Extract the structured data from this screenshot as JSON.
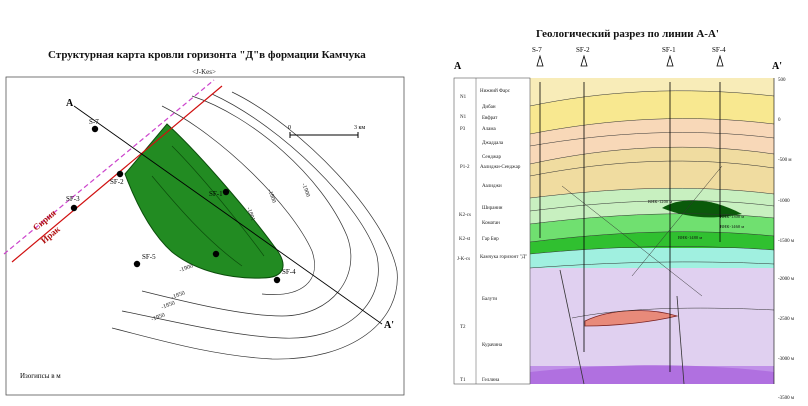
{
  "left": {
    "title": "Структурная карта кровли горизонта \"Д\"в формации Камчука",
    "subtitle": "<J-Kes>",
    "section_end_a": "A",
    "section_end_b": "A'",
    "border_label_1": "Сирия",
    "border_label_2": "Ирак",
    "scale_0": "0",
    "scale_3": "3 км",
    "legend": "Изогипсы в м",
    "wells": [
      "S-7",
      "SF-2",
      "SF-3",
      "SF-5",
      "SF-1",
      "SF-4"
    ],
    "contours": [
      "-1900",
      "-1850",
      "-1950",
      "-1800",
      "-1801",
      "-1900",
      "-1850"
    ],
    "colors": {
      "field": "#228b22",
      "field_edge": "#0b4d0b",
      "border": "#d01010",
      "border_dash": "#cc44cc"
    }
  },
  "right": {
    "title": "Геологический разрез по линии A-A'",
    "end_a": "A",
    "end_b": "A'",
    "well_labels": [
      "S-7",
      "SF-2",
      "SF-1",
      "SF-4"
    ],
    "depth_labels": [
      "500",
      "0",
      "-500 м",
      "-1000",
      "-1500 м",
      "-2000 м",
      "-2500 м",
      "-3000 м",
      "-3500 м"
    ],
    "formations": [
      "Нижний Фарс",
      "Дибан",
      "Евфрат",
      "Алама",
      "Джаддала",
      "Сенджар",
      "Аалиджи-Сенджар",
      "Аалиджи",
      "Ширанин",
      "Коматан",
      "Гар Бир",
      "Камчука горизонт \"Д\"",
      "Балути",
      "Курачина",
      "Геллина"
    ],
    "ages": [
      "N1",
      "N1",
      "P3",
      "P1-2",
      "K2-cs",
      "K2-st",
      "J-K-cs",
      "T2",
      "T1"
    ],
    "annotations": [
      "ВНК-1200 м",
      "ВНК-1300 м",
      "ВНК-1460 м",
      "ВНК-1480 м"
    ],
    "colors": {
      "top": "#f8ecb8",
      "yellow": "#f8e890",
      "orange": "#f8d8b8",
      "tan": "#f0dca0",
      "lightgreen": "#c8f0c0",
      "green": "#70e070",
      "darkgreen": "#30c030",
      "teal": "#a0f0e0",
      "lavender": "#e0d0f0",
      "purple": "#c090e8"
    }
  }
}
